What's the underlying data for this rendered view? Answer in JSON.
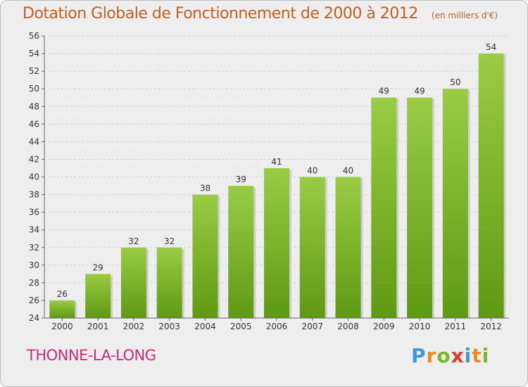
{
  "chart_data": {
    "type": "bar",
    "title": "Dotation Globale de Fonctionnement de 2000 à 2012",
    "subtitle": "(en milliers d'€)",
    "categories": [
      "2000",
      "2001",
      "2002",
      "2003",
      "2004",
      "2005",
      "2006",
      "2007",
      "2008",
      "2009",
      "2010",
      "2011",
      "2012"
    ],
    "values": [
      26,
      29,
      32,
      32,
      38,
      39,
      41,
      40,
      40,
      49,
      49,
      50,
      54
    ],
    "ylim": [
      24,
      56
    ],
    "yticks": [
      24,
      26,
      28,
      30,
      32,
      34,
      36,
      38,
      40,
      42,
      44,
      46,
      48,
      50,
      52,
      54,
      56
    ],
    "grid": true,
    "colors": {
      "bar_top": "#99cc44",
      "bar_bottom": "#5e9a12",
      "title": "#c06020",
      "commune": "#cc2a7a"
    }
  },
  "commune": "THONNE-LA-LONG",
  "logo": {
    "letters": [
      "P",
      "r",
      "o",
      "x",
      "i",
      "t",
      "i"
    ],
    "colors": [
      "#3a9ad9",
      "#f08a1e",
      "#77b82a",
      "#e23b2a",
      "#3a9ad9",
      "#f08a1e",
      "#77b82a"
    ]
  }
}
